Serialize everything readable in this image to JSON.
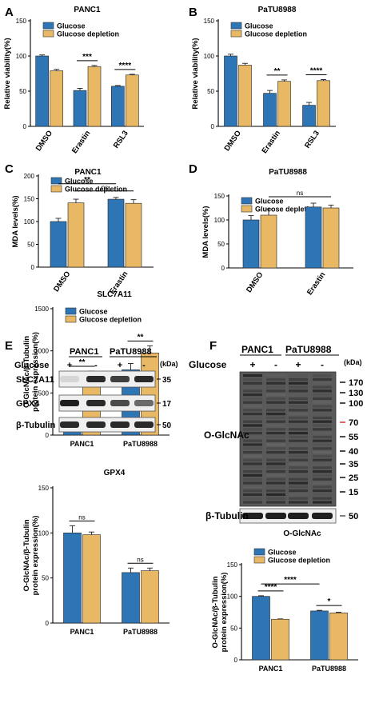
{
  "colors": {
    "glucose": "#2e75b6",
    "depletion": "#e8b865",
    "blot_bg": "#efefef",
    "band": "#1a1a1a",
    "kda_red": "#d62828"
  },
  "chart_data": [
    {
      "panel": "A",
      "type": "bar",
      "title": "PANC1",
      "ylabel": "Relative viability(%)",
      "ylim": [
        0,
        150
      ],
      "yticks": [
        0,
        50,
        100,
        150
      ],
      "categories": [
        "DMSO",
        "Erastin",
        "RSL3"
      ],
      "series": [
        {
          "name": "Glucose",
          "values": [
            100,
            51,
            57
          ],
          "errors": [
            1.5,
            3,
            1
          ]
        },
        {
          "name": "Glucose depletion",
          "values": [
            79,
            85,
            73
          ],
          "errors": [
            2,
            1.5,
            1
          ]
        }
      ],
      "annotations": [
        {
          "group": 1,
          "text": "***"
        },
        {
          "group": 2,
          "text": "****"
        }
      ],
      "legend": "top"
    },
    {
      "panel": "B",
      "type": "bar",
      "title": "PaTU8988",
      "ylabel": "Relative viability(%)",
      "ylim": [
        0,
        150
      ],
      "yticks": [
        0,
        50,
        100,
        150
      ],
      "categories": [
        "DMSO",
        "Erastin",
        "RSL3"
      ],
      "series": [
        {
          "name": "Glucose",
          "values": [
            100,
            47,
            30
          ],
          "errors": [
            2.5,
            4,
            4
          ]
        },
        {
          "name": "Glucose depletion",
          "values": [
            87,
            64,
            65
          ],
          "errors": [
            2.5,
            2,
            1.5
          ]
        }
      ],
      "annotations": [
        {
          "group": 1,
          "text": "**"
        },
        {
          "group": 2,
          "text": "****"
        }
      ],
      "legend": "top"
    },
    {
      "panel": "C",
      "type": "bar",
      "title": "PANC1",
      "ylabel": "MDA levels(%)",
      "ylim": [
        0,
        200
      ],
      "yticks": [
        0,
        50,
        100,
        150,
        200
      ],
      "categories": [
        "DMSO",
        "Erastin"
      ],
      "series": [
        {
          "name": "Glucose",
          "values": [
            100,
            149
          ],
          "errors": [
            7,
            4
          ]
        },
        {
          "name": "Glucose depletion",
          "values": [
            141,
            140
          ],
          "errors": [
            8,
            8
          ]
        }
      ],
      "comparisons": [
        {
          "text": "ns",
          "from": [
            0,
            1
          ],
          "to": [
            1,
            1
          ]
        },
        {
          "text": "**",
          "from": [
            0,
            0
          ],
          "to": [
            1,
            0
          ]
        }
      ],
      "legend": "top"
    },
    {
      "panel": "D",
      "type": "bar",
      "title": "PaTU8988",
      "ylabel": "MDA levels(%)",
      "ylim": [
        0,
        150
      ],
      "yticks": [
        0,
        50,
        100,
        150
      ],
      "categories": [
        "DMSO",
        "Erastin"
      ],
      "series": [
        {
          "name": "Glucose",
          "values": [
            100,
            127
          ],
          "errors": [
            9,
            8
          ]
        },
        {
          "name": "Glucose depletion",
          "values": [
            110,
            125
          ],
          "errors": [
            13,
            6
          ]
        }
      ],
      "comparisons": [
        {
          "text": "ns",
          "from": [
            0,
            1
          ],
          "to": [
            1,
            1
          ]
        }
      ],
      "legend": "top"
    },
    {
      "panel": "E",
      "type": "bar",
      "title": "SLC7A11",
      "ylabel": "O-GlcNAc/β-Tubulin protein expression(%)",
      "ylim": [
        0,
        1500
      ],
      "yticks": [
        0,
        500,
        1000,
        1500
      ],
      "categories": [
        "PANC1",
        "PaTU8988"
      ],
      "series": [
        {
          "name": "Glucose",
          "values": [
            100,
            775
          ],
          "errors": [
            15,
            75
          ]
        },
        {
          "name": "Glucose depletion",
          "values": [
            720,
            975
          ],
          "errors": [
            40,
            85
          ]
        }
      ],
      "annotations": [
        {
          "group": 0,
          "text": "**"
        },
        {
          "group": 1,
          "text": "**"
        }
      ],
      "legend": "top"
    },
    {
      "panel": "E",
      "type": "bar",
      "title": "GPX4",
      "ylabel": "O-GlcNAc/β-Tubulin protein expression(%)",
      "ylim": [
        0,
        150
      ],
      "yticks": [
        0,
        50,
        100,
        150
      ],
      "categories": [
        "PANC1",
        "PaTU8988"
      ],
      "series": [
        {
          "name": "Glucose",
          "values": [
            100,
            56
          ],
          "errors": [
            8,
            5
          ]
        },
        {
          "name": "Glucose depletion",
          "values": [
            98,
            58
          ],
          "errors": [
            3,
            3
          ]
        }
      ],
      "annotations": [
        {
          "group": 0,
          "text": "ns"
        },
        {
          "group": 1,
          "text": "ns"
        }
      ],
      "legend": "none"
    },
    {
      "panel": "F",
      "type": "bar",
      "title": "O-GlcNAc",
      "ylabel": "O-GlcNAc/β-Tubulin protein expression(%)",
      "ylim": [
        0,
        150
      ],
      "yticks": [
        0,
        50,
        100,
        150
      ],
      "categories": [
        "PANC1",
        "PaTU8988"
      ],
      "series": [
        {
          "name": "Glucose",
          "values": [
            100,
            77
          ],
          "errors": [
            1,
            1
          ]
        },
        {
          "name": "Glucose depletion",
          "values": [
            64,
            74
          ],
          "errors": [
            0.5,
            1
          ]
        }
      ],
      "annotations": [
        {
          "group": 0,
          "text": "****"
        },
        {
          "group": 1,
          "text": "*"
        }
      ],
      "comparisons": [
        {
          "text": "****",
          "from": [
            0,
            0
          ],
          "to": [
            1,
            0
          ]
        }
      ],
      "legend": "top"
    }
  ],
  "blot_e": {
    "panel": "E",
    "groups": [
      "PANC1",
      "PaTU8988"
    ],
    "row_label": "Glucose",
    "lanes": [
      "+",
      "-",
      "+",
      "-"
    ],
    "kda_unit": "(kDa)",
    "proteins": [
      {
        "name": "SLC7A11",
        "kda": "35",
        "intensity": [
          0.1,
          0.9,
          0.8,
          0.9
        ]
      },
      {
        "name": "GPX4",
        "kda": "17",
        "intensity": [
          0.95,
          0.9,
          0.75,
          0.6
        ]
      },
      {
        "name": "β-Tubulin",
        "kda": "50",
        "intensity": [
          0.9,
          0.9,
          0.9,
          0.9
        ]
      }
    ]
  },
  "blot_f": {
    "panel": "F",
    "groups": [
      "PANC1",
      "PaTU8988"
    ],
    "row_label": "Glucose",
    "lanes": [
      "+",
      "-",
      "+",
      "-"
    ],
    "kda_unit": "(kDa)",
    "markers": [
      "170",
      "130",
      "100",
      "70",
      "55",
      "40",
      "35",
      "25",
      "15"
    ],
    "highlight_marker": "70",
    "main_label": "O-GlcNAc",
    "loading_label": "β-Tubulin",
    "loading_kda": "50"
  }
}
